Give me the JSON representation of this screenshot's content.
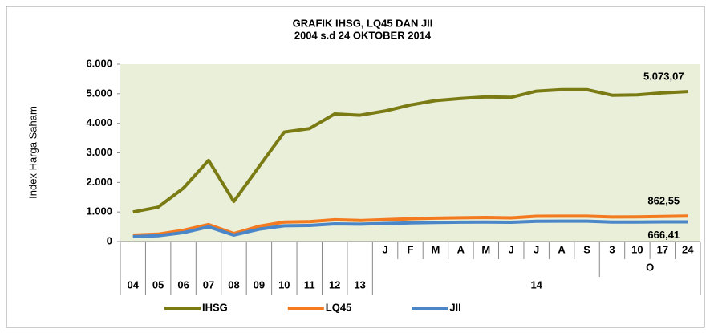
{
  "chart_data": {
    "type": "line",
    "title": "GRAFIK IHSG, LQ45 DAN JII",
    "subtitle": "2004 s.d    24 OKTOBER 2014",
    "y_label": "Index Harga Saham",
    "categories": [
      "04",
      "05",
      "06",
      "07",
      "08",
      "09",
      "10",
      "11",
      "12",
      "13",
      "J",
      "F",
      "M",
      "A",
      "M",
      "J",
      "J",
      "A",
      "S",
      "3",
      "10",
      "17",
      "24"
    ],
    "category_groups": [
      {
        "label": "O",
        "start": 19,
        "end": 22
      },
      {
        "label": "14",
        "start": 10,
        "end": 22
      }
    ],
    "series": [
      {
        "name": "IHSG",
        "color": "#7b7b14",
        "values": [
          1000,
          1163,
          1805,
          2745,
          1355,
          2534,
          3703,
          3821,
          4316,
          4274,
          4418,
          4620,
          4768,
          4840,
          4893,
          4879,
          5088,
          5137,
          5138,
          4949,
          4963,
          5028,
          5073.07
        ],
        "value_labels": [
          null,
          null,
          null,
          null,
          null,
          null,
          null,
          null,
          null,
          null,
          null,
          null,
          null,
          null,
          null,
          null,
          null,
          null,
          null,
          null,
          null,
          null,
          "5.073,07"
        ]
      },
      {
        "name": "LQ45",
        "color": "#f47a20",
        "values": [
          217,
          250,
          382,
          574,
          270,
          515,
          659,
          673,
          735,
          711,
          740,
          770,
          790,
          805,
          815,
          800,
          855,
          860,
          860,
          830,
          835,
          848,
          862.55
        ],
        "value_labels": [
          null,
          null,
          null,
          null,
          null,
          null,
          null,
          null,
          null,
          null,
          null,
          null,
          null,
          null,
          null,
          null,
          null,
          null,
          null,
          null,
          null,
          null,
          "862,55"
        ]
      },
      {
        "name": "JII",
        "color": "#4a86c8",
        "values": [
          165,
          197,
          301,
          497,
          218,
          417,
          532,
          544,
          598,
          586,
          610,
          630,
          645,
          655,
          660,
          650,
          685,
          690,
          690,
          660,
          658,
          665,
          666.41
        ],
        "value_labels": [
          null,
          null,
          null,
          null,
          null,
          null,
          null,
          null,
          null,
          null,
          null,
          null,
          null,
          null,
          null,
          null,
          null,
          null,
          null,
          null,
          null,
          null,
          "666,41"
        ]
      }
    ],
    "ylim": [
      0,
      6000
    ],
    "yticks": [
      0,
      {
        "value": 1000,
        "label": "1.000"
      },
      {
        "value": 2000,
        "label": "2.000"
      },
      {
        "value": 3000,
        "label": "3.000"
      },
      {
        "value": 4000,
        "label": "4.000"
      },
      {
        "value": 5000,
        "label": "5.000"
      },
      {
        "value": 6000,
        "label": "6.000"
      }
    ],
    "plot_background": "#e9efd9",
    "legend": "bottom"
  }
}
